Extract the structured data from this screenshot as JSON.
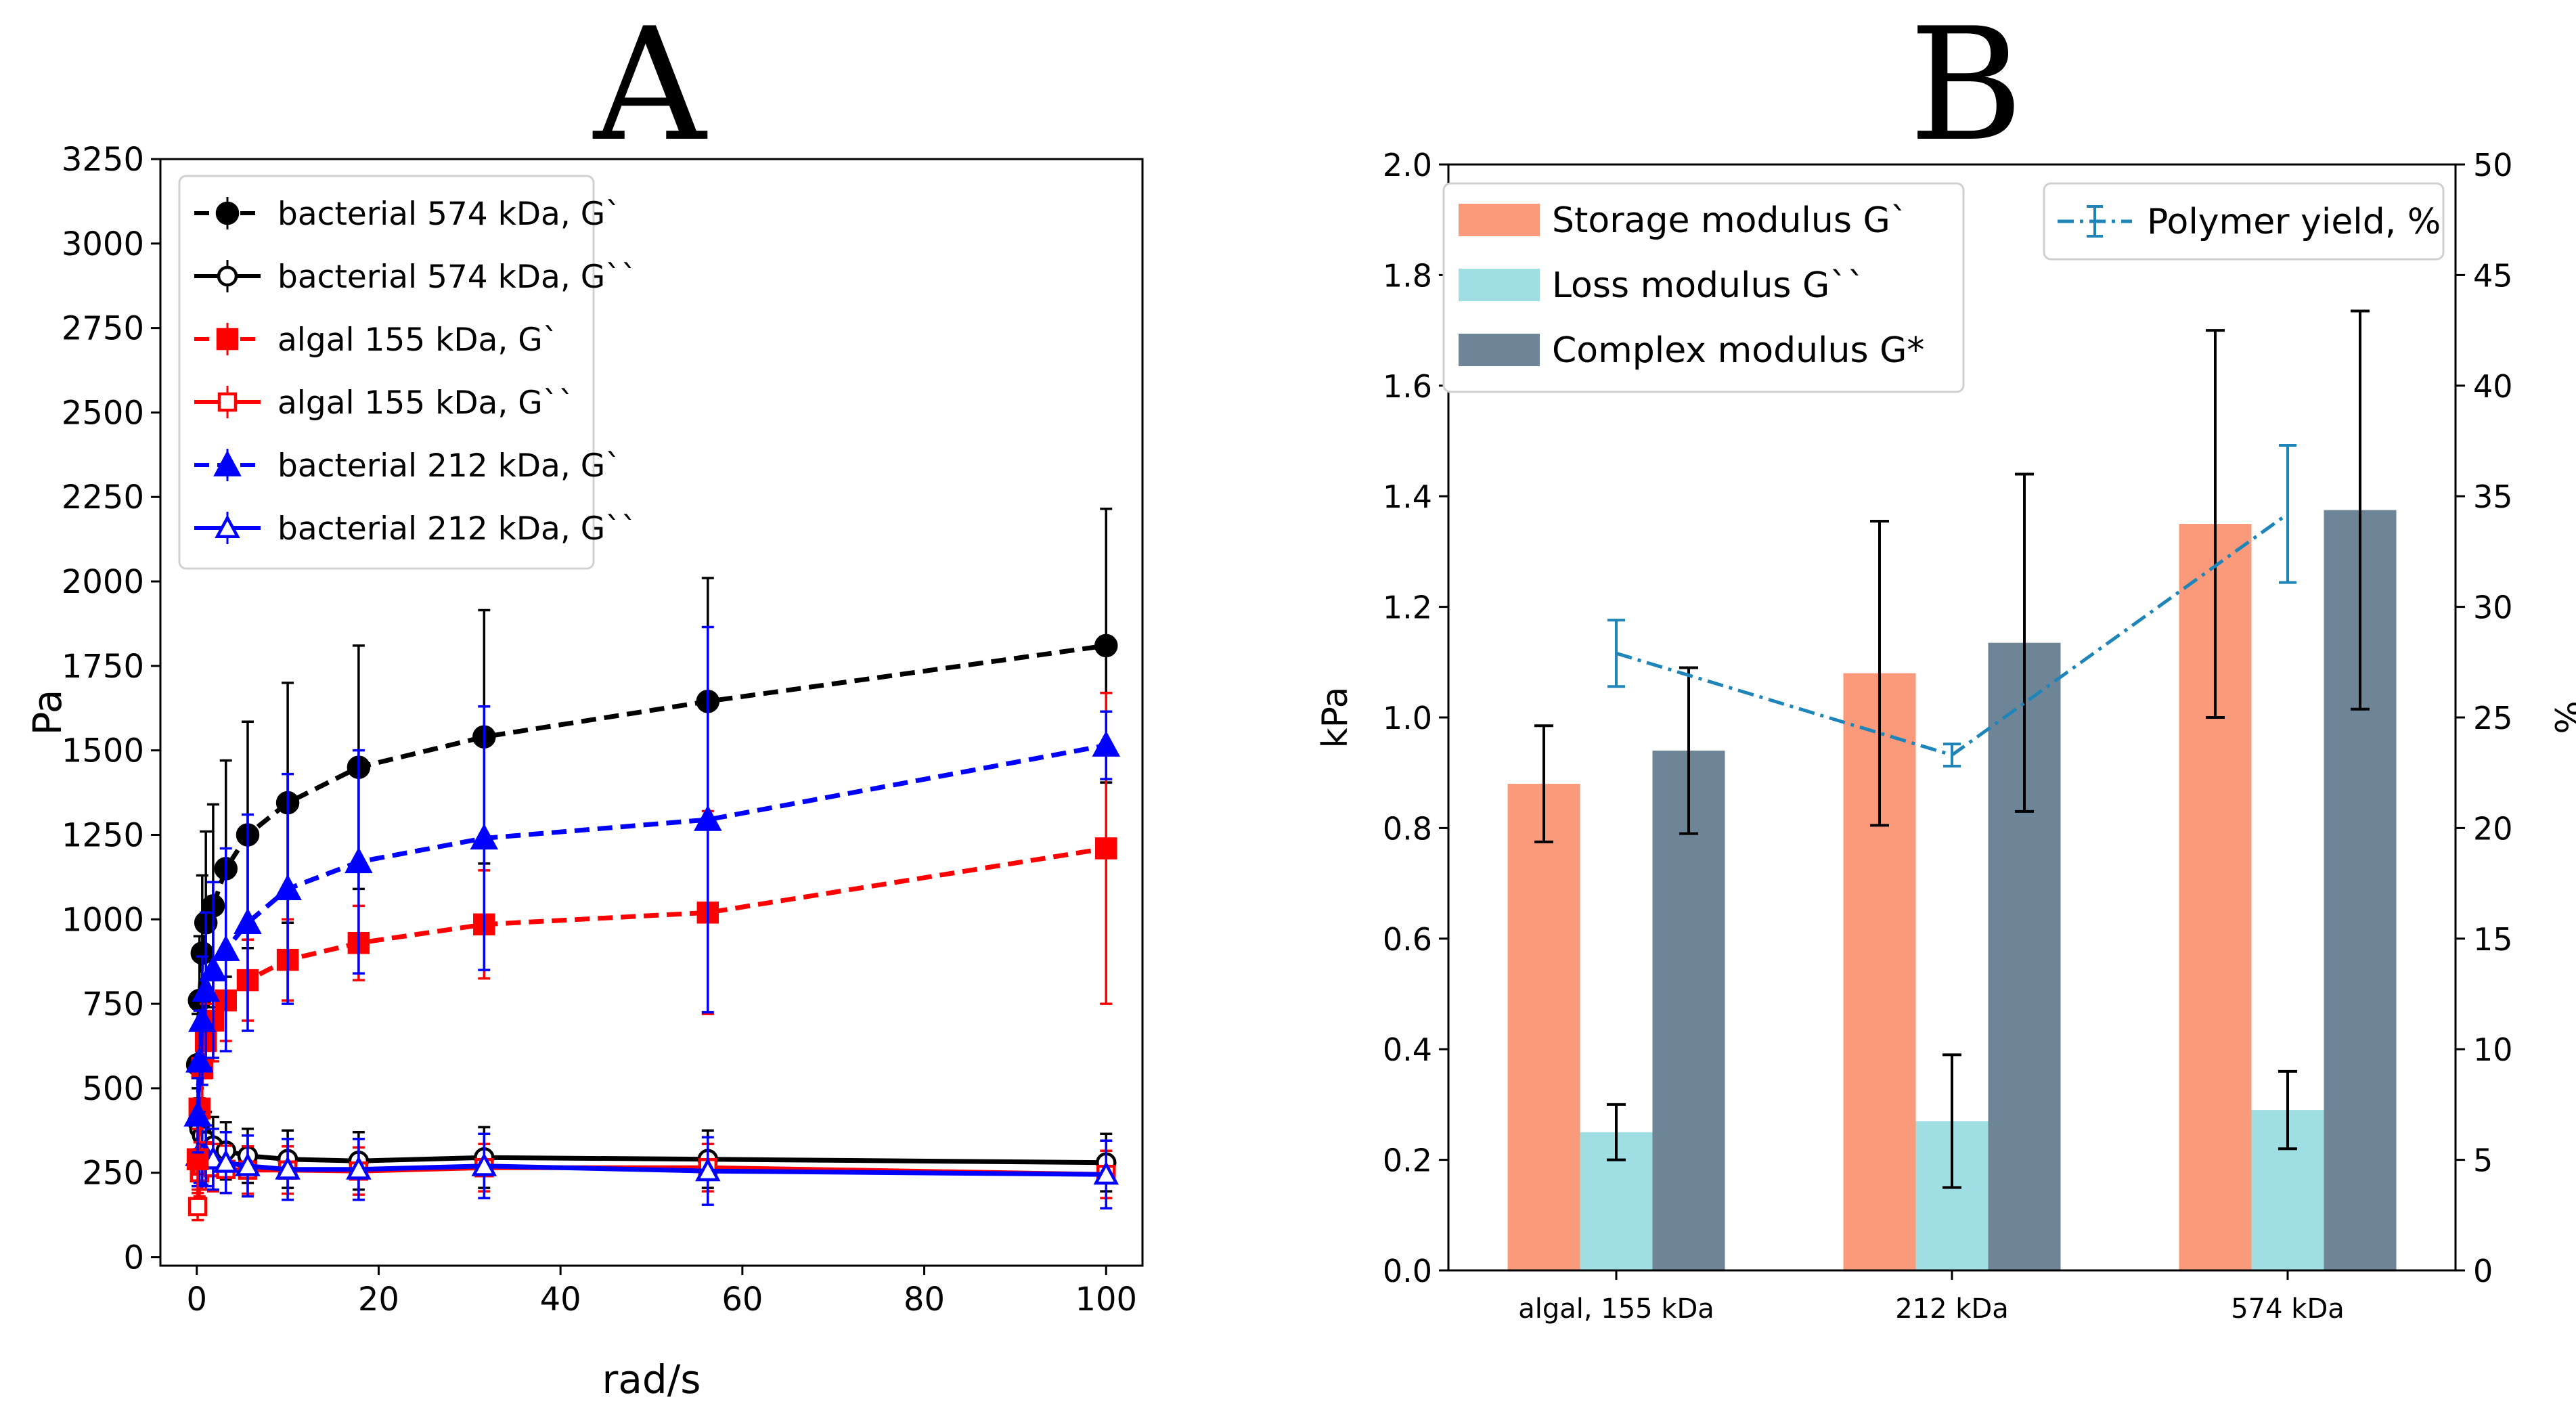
{
  "chart_data": [
    {
      "panel": "A",
      "type": "line",
      "xlabel": "rad/s",
      "ylabel": "Pa",
      "xlim": [
        -4,
        104
      ],
      "ylim": [
        -25,
        3250
      ],
      "xticks": [
        0,
        20,
        40,
        60,
        80,
        100
      ],
      "yticks": [
        0,
        250,
        500,
        750,
        1000,
        1250,
        1500,
        1750,
        2000,
        2250,
        2500,
        2750,
        3000,
        3250
      ],
      "legend_position": "top-left",
      "x": [
        0.1,
        0.3,
        0.6,
        1.0,
        1.8,
        3.2,
        5.6,
        10,
        17.8,
        31.6,
        56.2,
        100
      ],
      "series": [
        {
          "name": "bacterial 574 kDa, G`",
          "color": "#000000",
          "style": "dashed",
          "marker": "circle-filled",
          "values": [
            570,
            760,
            900,
            990,
            1040,
            1150,
            1250,
            1345,
            1450,
            1540,
            1645,
            1810
          ],
          "errors": [
            150,
            190,
            230,
            270,
            300,
            320,
            335,
            355,
            360,
            375,
            365,
            405
          ]
        },
        {
          "name": "bacterial 574 kDa, G``",
          "color": "#000000",
          "style": "solid",
          "marker": "circle-open",
          "values": [
            400,
            380,
            360,
            345,
            330,
            315,
            300,
            290,
            285,
            295,
            290,
            280
          ],
          "errors": [
            100,
            90,
            90,
            85,
            85,
            85,
            80,
            85,
            85,
            90,
            85,
            85
          ]
        },
        {
          "name": "algal 155 kDa, G`",
          "color": "#ff0000",
          "style": "dashed",
          "marker": "square-filled",
          "values": [
            290,
            440,
            560,
            640,
            700,
            760,
            820,
            880,
            930,
            985,
            1020,
            1210
          ],
          "errors": [
            90,
            100,
            110,
            110,
            120,
            120,
            120,
            120,
            110,
            160,
            300,
            460
          ]
        },
        {
          "name": "algal 155 kDa, G``",
          "color": "#ff0000",
          "style": "solid",
          "marker": "square-open",
          "values": [
            150,
            250,
            270,
            270,
            265,
            260,
            258,
            258,
            255,
            265,
            265,
            245
          ],
          "errors": [
            40,
            70,
            70,
            70,
            70,
            70,
            70,
            70,
            70,
            70,
            70,
            70
          ]
        },
        {
          "name": "bacterial 212 kDa, G`",
          "color": "#0000ff",
          "style": "dashed",
          "marker": "triangle-filled",
          "values": [
            420,
            580,
            700,
            790,
            850,
            910,
            990,
            1090,
            1170,
            1240,
            1295,
            1515
          ],
          "errors": [
            110,
            150,
            190,
            230,
            260,
            300,
            320,
            340,
            330,
            390,
            570,
            100
          ]
        },
        {
          "name": "bacterial 212 kDa, G``",
          "color": "#0000ff",
          "style": "solid",
          "marker": "triangle-open",
          "values": [
            300,
            310,
            305,
            300,
            290,
            280,
            270,
            260,
            260,
            270,
            255,
            245
          ],
          "errors": [
            90,
            90,
            90,
            90,
            90,
            90,
            90,
            90,
            90,
            95,
            100,
            100
          ]
        }
      ]
    },
    {
      "panel": "B",
      "type": "bar",
      "ylabel": "kPa",
      "y2label": "%",
      "ylim": [
        0,
        2.0
      ],
      "y2lim": [
        0,
        50
      ],
      "yticks": [
        0.0,
        0.2,
        0.4,
        0.6,
        0.8,
        1.0,
        1.2,
        1.4,
        1.6,
        1.8,
        2.0
      ],
      "y2ticks": [
        0,
        5,
        10,
        15,
        20,
        25,
        30,
        35,
        40,
        45,
        50
      ],
      "categories": [
        "algal, 155  kDa",
        "212 kDa",
        "574 kDa"
      ],
      "legend_position": "top-left",
      "legend2_position": "top-right",
      "series": [
        {
          "name": "Storage modulus G`",
          "color": "#fa9a7a",
          "values": [
            0.88,
            1.08,
            1.35
          ],
          "errors": [
            0.105,
            0.275,
            0.35
          ]
        },
        {
          "name": "Loss modulus G``",
          "color": "#9fdfe4",
          "values": [
            0.25,
            0.27,
            0.29
          ],
          "errors": [
            0.05,
            0.12,
            0.07
          ]
        },
        {
          "name": "Complex modulus G*",
          "color": "#6d8597",
          "values": [
            0.94,
            1.135,
            1.375
          ],
          "errors": [
            0.15,
            0.305,
            0.36
          ]
        }
      ],
      "line_series": {
        "name": "Polymer yield, %",
        "color": "#1f85b8",
        "style": "dashdot",
        "values": [
          27.9,
          23.3,
          34.2
        ],
        "errors": [
          1.5,
          0.5,
          3.1
        ]
      }
    }
  ],
  "labels": {
    "panel_a": "A",
    "panel_b": "B"
  }
}
